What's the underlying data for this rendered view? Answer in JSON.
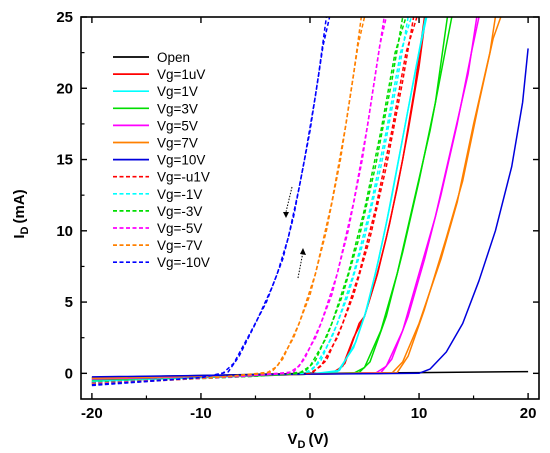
{
  "chart_data": {
    "type": "line",
    "xlabel": "V",
    "xlabel_sub": "D",
    "xlabel_unit": "(V)",
    "ylabel": "I",
    "ylabel_sub": "D",
    "ylabel_unit": "(mA)",
    "xlim": [
      -21,
      21
    ],
    "ylim": [
      -1.8,
      25
    ],
    "xticks": [
      -20,
      -10,
      0,
      10,
      20
    ],
    "xtick_labels": [
      "-20",
      "-10",
      "0",
      "10",
      "20"
    ],
    "yticks": [
      0,
      5,
      10,
      15,
      20,
      25
    ],
    "ytick_labels": [
      "0",
      "5",
      "10",
      "15",
      "20",
      "25"
    ],
    "grid": false,
    "legend_position": "top-left",
    "series": [
      {
        "name": "Open",
        "color": "#000000",
        "dash": false,
        "sweeps": [
          [
            [
              -20,
              -0.3
            ],
            [
              -10,
              -0.15
            ],
            [
              0,
              0
            ],
            [
              10,
              0.05
            ],
            [
              20,
              0.12
            ]
          ]
        ]
      },
      {
        "name": "Vg=1uV",
        "color": "#ff0000",
        "dash": false,
        "sweeps": [
          [
            [
              -20,
              -0.5
            ],
            [
              0,
              -0.05
            ],
            [
              2,
              0
            ],
            [
              3,
              0.5
            ],
            [
              4,
              2.5
            ],
            [
              5,
              4
            ],
            [
              6,
              6.5
            ],
            [
              7,
              9.5
            ],
            [
              8,
              13
            ],
            [
              9,
              17
            ],
            [
              10,
              21.5
            ],
            [
              10.6,
              25
            ]
          ],
          [
            [
              -20,
              -0.55
            ],
            [
              0,
              -0.05
            ],
            [
              2.2,
              0
            ],
            [
              3.2,
              0.7
            ],
            [
              4.5,
              3.5
            ],
            [
              5,
              4
            ],
            [
              6.2,
              7
            ],
            [
              7.3,
              10.5
            ],
            [
              8.5,
              15
            ],
            [
              9.6,
              20
            ],
            [
              10.5,
              25
            ]
          ]
        ]
      },
      {
        "name": "Vg=1V",
        "color": "#00ffff",
        "dash": false,
        "sweeps": [
          [
            [
              -20,
              -0.5
            ],
            [
              0,
              -0.05
            ],
            [
              2.5,
              0.1
            ],
            [
              4,
              1.8
            ],
            [
              5,
              4
            ],
            [
              6,
              7
            ],
            [
              7,
              10.5
            ],
            [
              8,
              14.5
            ],
            [
              9,
              18.5
            ],
            [
              10,
              22.5
            ],
            [
              10.7,
              25
            ]
          ],
          [
            [
              -20,
              -0.55
            ],
            [
              0,
              -0.05
            ],
            [
              2.7,
              0.2
            ],
            [
              4.2,
              2.2
            ],
            [
              5.2,
              4.5
            ],
            [
              6.3,
              8
            ],
            [
              7.4,
              12
            ],
            [
              8.5,
              16.5
            ],
            [
              9.6,
              21
            ],
            [
              10.6,
              25
            ]
          ]
        ]
      },
      {
        "name": "Vg=3V",
        "color": "#00dd00",
        "dash": false,
        "sweeps": [
          [
            [
              -20,
              -0.4
            ],
            [
              0,
              -0.05
            ],
            [
              4,
              0
            ],
            [
              5,
              0.4
            ],
            [
              6.5,
              3
            ],
            [
              8,
              7
            ],
            [
              9.5,
              12
            ],
            [
              11,
              17
            ],
            [
              12.5,
              23
            ],
            [
              13,
              25
            ]
          ],
          [
            [
              -20,
              -0.45
            ],
            [
              0,
              -0.05
            ],
            [
              4.5,
              0.05
            ],
            [
              5.5,
              0.8
            ],
            [
              7,
              4
            ],
            [
              8.5,
              8.5
            ],
            [
              10,
              13.5
            ],
            [
              11.5,
              19
            ],
            [
              12.6,
              25
            ]
          ]
        ]
      },
      {
        "name": "Vg=5V",
        "color": "#ff00ff",
        "dash": false,
        "sweeps": [
          [
            [
              -20,
              -0.35
            ],
            [
              0,
              -0.05
            ],
            [
              6,
              0
            ],
            [
              7,
              0.5
            ],
            [
              8.5,
              3
            ],
            [
              10,
              7
            ],
            [
              11.5,
              11
            ],
            [
              13,
              16
            ],
            [
              14.5,
              21
            ],
            [
              15.3,
              25
            ]
          ],
          [
            [
              -20,
              -0.4
            ],
            [
              0,
              -0.05
            ],
            [
              6.5,
              0.05
            ],
            [
              7.5,
              1
            ],
            [
              9,
              4
            ],
            [
              10.5,
              8
            ],
            [
              12,
              12.5
            ],
            [
              13.5,
              17.5
            ],
            [
              14.8,
              22.5
            ],
            [
              15.5,
              25
            ]
          ]
        ]
      },
      {
        "name": "Vg=7V",
        "color": "#ff8000",
        "dash": false,
        "sweeps": [
          [
            [
              -20,
              -0.3
            ],
            [
              0,
              -0.05
            ],
            [
              7.5,
              0
            ],
            [
              8.5,
              0.8
            ],
            [
              10,
              3.5
            ],
            [
              12,
              8
            ],
            [
              13.5,
              12
            ],
            [
              15,
              17.5
            ],
            [
              16.5,
              22.5
            ],
            [
              17,
              25
            ]
          ],
          [
            [
              -20,
              -0.35
            ],
            [
              0,
              -0.05
            ],
            [
              8,
              0.05
            ],
            [
              9,
              1.2
            ],
            [
              10.5,
              4.5
            ],
            [
              12.5,
              9.5
            ],
            [
              14,
              13.5
            ],
            [
              15.5,
              19
            ],
            [
              16.8,
              23.5
            ],
            [
              17.5,
              25
            ]
          ]
        ]
      },
      {
        "name": "Vg=10V",
        "color": "#0000dd",
        "dash": false,
        "sweeps": [
          [
            [
              -20,
              -0.25
            ],
            [
              0,
              -0.05
            ],
            [
              10,
              0
            ],
            [
              11,
              0.3
            ],
            [
              12.5,
              1.5
            ],
            [
              14,
              3.5
            ],
            [
              15.5,
              6.5
            ],
            [
              17,
              10
            ],
            [
              18.5,
              14.5
            ],
            [
              19.5,
              19
            ],
            [
              20,
              22.8
            ]
          ]
        ]
      },
      {
        "name": "Vg=-u1V",
        "color": "#ff0000",
        "dash": true,
        "sweeps": [
          [
            [
              -20,
              -0.6
            ],
            [
              -5,
              -0.15
            ],
            [
              0,
              0
            ],
            [
              1,
              0.5
            ],
            [
              2.5,
              2.5
            ],
            [
              4,
              5.5
            ],
            [
              5.5,
              9.5
            ],
            [
              7,
              14.5
            ],
            [
              8.5,
              20.5
            ],
            [
              9.5,
              25
            ]
          ],
          [
            [
              -20,
              -0.65
            ],
            [
              -5,
              -0.15
            ],
            [
              0.3,
              0.1
            ],
            [
              1.5,
              0.9
            ],
            [
              3,
              3.5
            ],
            [
              4.5,
              7
            ],
            [
              6,
              11.5
            ],
            [
              7.5,
              17
            ],
            [
              8.8,
              22.5
            ],
            [
              9.8,
              25
            ]
          ]
        ]
      },
      {
        "name": "Vg=-1V",
        "color": "#00ffff",
        "dash": true,
        "sweeps": [
          [
            [
              -20,
              -0.6
            ],
            [
              -5,
              -0.15
            ],
            [
              -0.5,
              0
            ],
            [
              0.5,
              0.5
            ],
            [
              2,
              2.5
            ],
            [
              3.5,
              5.5
            ],
            [
              5,
              9.5
            ],
            [
              6.5,
              14.5
            ],
            [
              8,
              20.5
            ],
            [
              9,
              25
            ]
          ],
          [
            [
              -20,
              -0.65
            ],
            [
              -5,
              -0.15
            ],
            [
              0,
              0.1
            ],
            [
              1,
              0.9
            ],
            [
              2.5,
              3.5
            ],
            [
              4,
              7
            ],
            [
              5.5,
              11.5
            ],
            [
              7,
              17
            ],
            [
              8.3,
              22.5
            ],
            [
              9.3,
              25
            ]
          ]
        ]
      },
      {
        "name": "Vg=-3V",
        "color": "#00dd00",
        "dash": true,
        "sweeps": [
          [
            [
              -20,
              -0.65
            ],
            [
              -5,
              -0.2
            ],
            [
              -1,
              0
            ],
            [
              0,
              0.5
            ],
            [
              1.5,
              2.5
            ],
            [
              3,
              5.5
            ],
            [
              4.5,
              9.5
            ],
            [
              6,
              14.5
            ],
            [
              7.5,
              20.5
            ],
            [
              8.5,
              25
            ]
          ],
          [
            [
              -20,
              -0.7
            ],
            [
              -5,
              -0.2
            ],
            [
              -0.5,
              0.1
            ],
            [
              0.5,
              0.9
            ],
            [
              2,
              3.5
            ],
            [
              3.5,
              7
            ],
            [
              5,
              11.5
            ],
            [
              6.5,
              17
            ],
            [
              7.8,
              22.5
            ],
            [
              8.8,
              25
            ]
          ]
        ]
      },
      {
        "name": "Vg=-5V",
        "color": "#ff00ff",
        "dash": true,
        "sweeps": [
          [
            [
              -20,
              -0.7
            ],
            [
              -6,
              -0.2
            ],
            [
              -2,
              0
            ],
            [
              -1,
              0.5
            ],
            [
              0.5,
              2.5
            ],
            [
              2,
              5.5
            ],
            [
              3.5,
              10
            ],
            [
              4.8,
              15
            ],
            [
              6,
              21
            ],
            [
              6.8,
              25
            ]
          ],
          [
            [
              -20,
              -0.75
            ],
            [
              -6,
              -0.2
            ],
            [
              -1.5,
              0.1
            ],
            [
              -0.5,
              1
            ],
            [
              1,
              3.5
            ],
            [
              2.5,
              7
            ],
            [
              4,
              12
            ],
            [
              5.3,
              17.5
            ],
            [
              6.4,
              23
            ],
            [
              7,
              25
            ]
          ]
        ]
      },
      {
        "name": "Vg=-7V",
        "color": "#ff8000",
        "dash": true,
        "sweeps": [
          [
            [
              -20,
              -0.75
            ],
            [
              -8,
              -0.25
            ],
            [
              -4,
              0
            ],
            [
              -3,
              0.5
            ],
            [
              -1.5,
              2.5
            ],
            [
              0,
              5.5
            ],
            [
              1.5,
              10
            ],
            [
              2.8,
              15
            ],
            [
              4,
              21
            ],
            [
              4.7,
              25
            ]
          ],
          [
            [
              -20,
              -0.8
            ],
            [
              -8,
              -0.25
            ],
            [
              -3.5,
              0.1
            ],
            [
              -2.5,
              1
            ],
            [
              -1,
              3.5
            ],
            [
              0.5,
              7
            ],
            [
              2,
              12
            ],
            [
              3.3,
              17.5
            ],
            [
              4.4,
              23
            ],
            [
              5,
              25
            ]
          ]
        ]
      },
      {
        "name": "Vg=-10V",
        "color": "#0000ff",
        "dash": true,
        "sweeps": [
          [
            [
              -20,
              -0.8
            ],
            [
              -10,
              -0.3
            ],
            [
              -8,
              0
            ],
            [
              -7,
              0.7
            ],
            [
              -5.5,
              2.8
            ],
            [
              -4,
              5
            ],
            [
              -3,
              7
            ],
            [
              -2,
              9.5
            ],
            [
              -1,
              13
            ],
            [
              0,
              17
            ],
            [
              0.8,
              21
            ],
            [
              1.5,
              25
            ]
          ],
          [
            [
              -20,
              -0.85
            ],
            [
              -10,
              -0.3
            ],
            [
              -7.5,
              0.1
            ],
            [
              -6.5,
              1.2
            ],
            [
              -5,
              3.5
            ],
            [
              -3.5,
              6
            ],
            [
              -2.5,
              8
            ],
            [
              -1.5,
              11
            ],
            [
              -0.5,
              15
            ],
            [
              0.5,
              19.5
            ],
            [
              1.2,
              23
            ],
            [
              1.8,
              25
            ]
          ]
        ]
      }
    ]
  }
}
